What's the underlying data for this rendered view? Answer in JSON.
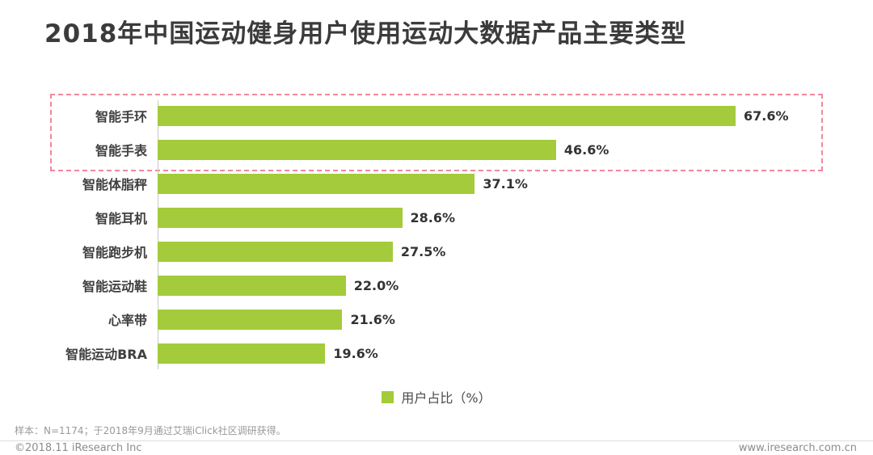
{
  "title": "2018年中国运动健身用户使用运动大数据产品主要类型",
  "chart_data": {
    "type": "bar",
    "orientation": "horizontal",
    "categories": [
      "智能手环",
      "智能手表",
      "智能体脂秤",
      "智能耳机",
      "智能跑步机",
      "智能运动鞋",
      "心率带",
      "智能运动BRA"
    ],
    "values": [
      67.6,
      46.6,
      37.1,
      28.6,
      27.5,
      22.0,
      21.6,
      19.6
    ],
    "labels": [
      "67.6%",
      "46.6%",
      "37.1%",
      "28.6%",
      "27.5%",
      "22.0%",
      "21.6%",
      "19.6%"
    ],
    "legend": "用户占比（%）",
    "xlabel": "",
    "ylabel": "",
    "axis_max": 78,
    "grid": false,
    "legend_position": "bottom-center",
    "bar_color": "#a3cb3b",
    "highlight": {
      "row_indices": [
        0,
        1
      ],
      "border_color": "#f2879e",
      "style": "dashed-box"
    }
  },
  "footer": {
    "note": "样本：N=1174；于2018年9月通过艾瑞iClick社区调研获得。",
    "copyright": "©2018.11 iResearch Inc",
    "website": "www.iresearch.com.cn"
  }
}
